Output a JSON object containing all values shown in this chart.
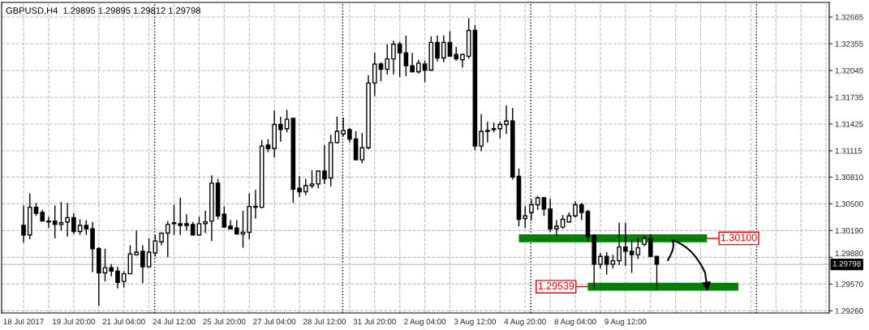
{
  "chart_data": {
    "type": "candlestick",
    "title": "GBPUSD,H4  1.29895 1.29895 1.29812 1.29798",
    "color": "#000000",
    "categories": [
      "18 Jul 2017",
      null,
      null,
      null,
      null,
      null,
      null,
      null,
      "19 Jul 20:00",
      null,
      null,
      null,
      null,
      null,
      null,
      null,
      "21 Jul 04:00",
      null,
      null,
      null,
      null,
      null,
      null,
      null,
      "24 Jul 12:00",
      null,
      null,
      null,
      null,
      null,
      null,
      null,
      "25 Jul 20:00",
      null,
      null,
      null,
      null,
      null,
      null,
      null,
      "27 Jul 04:00",
      null,
      null,
      null,
      null,
      null,
      null,
      null,
      "28 Jul 12:00",
      null,
      null,
      null,
      null,
      null,
      null,
      null,
      "31 Jul 20:00",
      null,
      null,
      null,
      null,
      null,
      null,
      null,
      "2 Aug 04:00",
      null,
      null,
      null,
      null,
      null,
      null,
      null,
      "3 Aug 12:00",
      null,
      null,
      null,
      null,
      null,
      null,
      null,
      "4 Aug 20:00",
      null,
      null,
      null,
      null,
      null,
      null,
      null,
      "8 Aug 04:00",
      null,
      null,
      null,
      null,
      null,
      null,
      null,
      "9 Aug 12:00",
      null,
      null,
      null,
      null,
      null,
      null,
      null,
      null,
      null,
      null,
      null,
      null,
      null,
      null,
      null,
      null,
      null,
      null,
      null,
      null,
      null,
      null,
      null,
      null,
      null,
      null,
      null,
      null,
      null,
      null,
      null,
      null
    ],
    "ohlc": [
      [
        1.3025,
        1.3048,
        1.3005,
        1.3014
      ],
      [
        1.3014,
        1.3062,
        1.3009,
        1.3046
      ],
      [
        1.3046,
        1.3051,
        1.3036,
        1.3039
      ],
      [
        1.304,
        1.3043,
        1.303,
        1.303
      ],
      [
        1.303,
        1.3035,
        1.3022,
        1.3029
      ],
      [
        1.303,
        1.3048,
        1.301,
        1.3026
      ],
      [
        1.3026,
        1.3052,
        1.3019,
        1.3028
      ],
      [
        1.3029,
        1.3051,
        1.3012,
        1.3034
      ],
      [
        1.3034,
        1.3039,
        1.3015,
        1.3018
      ],
      [
        1.3018,
        1.3032,
        1.3014,
        1.3025
      ],
      [
        1.3025,
        1.3031,
        1.3014,
        1.3021
      ],
      [
        1.3021,
        1.3029,
        1.2971,
        1.2998
      ],
      [
        1.2998,
        1.3,
        1.2932,
        1.297
      ],
      [
        1.297,
        1.2998,
        1.296,
        1.2976
      ],
      [
        1.2976,
        1.298,
        1.2966,
        1.2972
      ],
      [
        1.2972,
        1.2977,
        1.2952,
        1.2959
      ],
      [
        1.296,
        1.2972,
        1.2953,
        1.2969
      ],
      [
        1.2969,
        1.3002,
        1.2969,
        1.2992
      ],
      [
        1.2991,
        1.3019,
        1.299,
        1.2994
      ],
      [
        1.2995,
        1.3002,
        1.2958,
        1.2977
      ],
      [
        1.2977,
        1.301,
        1.2977,
        1.2994
      ],
      [
        1.2993,
        1.3014,
        1.2989,
        1.3007
      ],
      [
        1.3006,
        1.3016,
        1.3002,
        1.3016
      ],
      [
        1.3016,
        1.303,
        1.2988,
        1.3026
      ],
      [
        1.3027,
        1.3049,
        1.3014,
        1.3028
      ],
      [
        1.3027,
        1.3057,
        1.3014,
        1.3025
      ],
      [
        1.3027,
        1.3038,
        1.3019,
        1.3025
      ],
      [
        1.3026,
        1.3029,
        1.3014,
        1.3014
      ],
      [
        1.3014,
        1.3035,
        1.3014,
        1.3027
      ],
      [
        1.3027,
        1.3042,
        1.3016,
        1.3029
      ],
      [
        1.303,
        1.3083,
        1.3007,
        1.3074
      ],
      [
        1.3074,
        1.3079,
        1.3032,
        1.3036
      ],
      [
        1.3038,
        1.3047,
        1.3023,
        1.3023
      ],
      [
        1.3024,
        1.3031,
        1.3021,
        1.3021
      ],
      [
        1.3022,
        1.3031,
        1.3015,
        1.3015
      ],
      [
        1.3015,
        1.3042,
        1.2999,
        1.3017
      ],
      [
        1.3017,
        1.3062,
        1.3009,
        1.3047
      ],
      [
        1.3046,
        1.3066,
        1.3033,
        1.3047
      ],
      [
        1.3046,
        1.3124,
        1.3045,
        1.3117
      ],
      [
        1.3118,
        1.3125,
        1.311,
        1.3114
      ],
      [
        1.3114,
        1.3158,
        1.3104,
        1.3142
      ],
      [
        1.3142,
        1.3151,
        1.3122,
        1.3136
      ],
      [
        1.3137,
        1.3159,
        1.3133,
        1.3148
      ],
      [
        1.3149,
        1.3149,
        1.3051,
        1.3067
      ],
      [
        1.3068,
        1.3082,
        1.3058,
        1.3064
      ],
      [
        1.3064,
        1.3079,
        1.306,
        1.3071
      ],
      [
        1.3071,
        1.3089,
        1.3068,
        1.3073
      ],
      [
        1.3073,
        1.3088,
        1.3068,
        1.3088
      ],
      [
        1.3088,
        1.3118,
        1.3073,
        1.3079
      ],
      [
        1.308,
        1.313,
        1.307,
        1.3121
      ],
      [
        1.3121,
        1.3151,
        1.312,
        1.3134
      ],
      [
        1.3131,
        1.315,
        1.3128,
        1.3135
      ],
      [
        1.3136,
        1.3138,
        1.3121,
        1.3125
      ],
      [
        1.3125,
        1.3134,
        1.3101,
        1.3101
      ],
      [
        1.3101,
        1.3132,
        1.3097,
        1.3115
      ],
      [
        1.3115,
        1.3199,
        1.3113,
        1.319
      ],
      [
        1.319,
        1.3225,
        1.3175,
        1.3212
      ],
      [
        1.3212,
        1.3214,
        1.3192,
        1.3206
      ],
      [
        1.3206,
        1.3235,
        1.32,
        1.3218
      ],
      [
        1.3218,
        1.3239,
        1.32,
        1.3235
      ],
      [
        1.3235,
        1.3238,
        1.3197,
        1.3225
      ],
      [
        1.3225,
        1.3245,
        1.3198,
        1.321
      ],
      [
        1.321,
        1.3225,
        1.3203,
        1.3203
      ],
      [
        1.3203,
        1.3217,
        1.3201,
        1.3213
      ],
      [
        1.3212,
        1.3216,
        1.3191,
        1.3205
      ],
      [
        1.3205,
        1.3244,
        1.3204,
        1.3237
      ],
      [
        1.3237,
        1.3245,
        1.3215,
        1.3219
      ],
      [
        1.3219,
        1.3245,
        1.3214,
        1.3237
      ],
      [
        1.3237,
        1.325,
        1.3221,
        1.3221
      ],
      [
        1.3223,
        1.3232,
        1.3216,
        1.3218
      ],
      [
        1.3217,
        1.3223,
        1.3208,
        1.3223
      ],
      [
        1.3221,
        1.3265,
        1.3218,
        1.3251
      ],
      [
        1.3251,
        1.3257,
        1.3112,
        1.3117
      ],
      [
        1.3117,
        1.3154,
        1.3111,
        1.3134
      ],
      [
        1.3135,
        1.3145,
        1.3121,
        1.3134
      ],
      [
        1.3137,
        1.3144,
        1.3133,
        1.3136
      ],
      [
        1.3137,
        1.3145,
        1.3126,
        1.3142
      ],
      [
        1.3142,
        1.3164,
        1.3131,
        1.3146
      ],
      [
        1.3146,
        1.3161,
        1.3078,
        1.3081
      ],
      [
        1.3082,
        1.3091,
        1.3024,
        1.3032
      ],
      [
        1.3033,
        1.3047,
        1.3022,
        1.3036
      ],
      [
        1.304,
        1.3055,
        1.3031,
        1.3049
      ],
      [
        1.3049,
        1.3059,
        1.3043,
        1.3057
      ],
      [
        1.3057,
        1.3058,
        1.3036,
        1.3044
      ],
      [
        1.3044,
        1.3056,
        1.3017,
        1.3021
      ],
      [
        1.3021,
        1.3031,
        1.3013,
        1.3024
      ],
      [
        1.3023,
        1.3037,
        1.3021,
        1.3032
      ],
      [
        1.3029,
        1.304,
        1.3029,
        1.3036
      ],
      [
        1.3036,
        1.3053,
        1.3034,
        1.3049
      ],
      [
        1.3049,
        1.3051,
        1.3031,
        1.304
      ],
      [
        1.3041,
        1.3043,
        1.3006,
        1.3012
      ],
      [
        1.3013,
        1.3015,
        1.2952,
        1.298
      ],
      [
        1.298,
        1.2993,
        1.2975,
        1.2989
      ],
      [
        1.2989,
        1.2994,
        1.2968,
        1.298
      ],
      [
        1.298,
        1.2991,
        1.2975,
        1.2984
      ],
      [
        1.2984,
        1.3028,
        1.2979,
        1.3
      ],
      [
        1.3,
        1.3028,
        1.2978,
        1.2995
      ],
      [
        1.2995,
        1.3008,
        1.297,
        1.2991
      ],
      [
        1.2991,
        1.301,
        1.2986,
        1.2999
      ],
      [
        1.3003,
        1.3013,
        1.3001,
        1.301
      ],
      [
        1.301,
        1.3015,
        1.2989,
        1.2989
      ],
      [
        1.2989,
        1.2989,
        1.2951,
        1.298
      ],
      null,
      null,
      null,
      null,
      null,
      null,
      null,
      null,
      null,
      null,
      null,
      null,
      null,
      null,
      null,
      null,
      null,
      null,
      null,
      null,
      null,
      null,
      null,
      null,
      null,
      null,
      null
    ],
    "series": [
      {
        "type": "line",
        "color": "#008000",
        "values": [
          null,
          null,
          null,
          null,
          null,
          null,
          null,
          null,
          null,
          null,
          null,
          null,
          null,
          null,
          null,
          null,
          null,
          null,
          null,
          null,
          null,
          null,
          null,
          null,
          null,
          null,
          null,
          null,
          null,
          null,
          null,
          null,
          null,
          null,
          null,
          null,
          null,
          null,
          null,
          null,
          null,
          null,
          null,
          null,
          null,
          null,
          null,
          null,
          null,
          null,
          null,
          null,
          null,
          null,
          null,
          null,
          null,
          null,
          null,
          null,
          null,
          null,
          null,
          null,
          null,
          null,
          null,
          null,
          null,
          null,
          null,
          null,
          null,
          null,
          null,
          null,
          null,
          null,
          null,
          1.301,
          1.301,
          1.301,
          1.301,
          1.301,
          1.301,
          1.301,
          1.301,
          1.301,
          1.301,
          1.301,
          1.301,
          1.301,
          1.301,
          1.301,
          1.301,
          1.301,
          1.301,
          1.301,
          1.301,
          1.301,
          1.301,
          1.301,
          1.301,
          1.301,
          1.301,
          1.301,
          1.301,
          1.301,
          1.301,
          1.301,
          null,
          null,
          null,
          null,
          null,
          null,
          null,
          null,
          null,
          null,
          null,
          null,
          null,
          null,
          null,
          null,
          null,
          null,
          null
        ]
      },
      {
        "type": "line",
        "color": "#008000",
        "values": [
          null,
          null,
          null,
          null,
          null,
          null,
          null,
          null,
          null,
          null,
          null,
          null,
          null,
          null,
          null,
          null,
          null,
          null,
          null,
          null,
          null,
          null,
          null,
          null,
          null,
          null,
          null,
          null,
          null,
          null,
          null,
          null,
          null,
          null,
          null,
          null,
          null,
          null,
          null,
          null,
          null,
          null,
          null,
          null,
          null,
          null,
          null,
          null,
          null,
          null,
          null,
          null,
          null,
          null,
          null,
          null,
          null,
          null,
          null,
          null,
          null,
          null,
          null,
          null,
          null,
          null,
          null,
          null,
          null,
          null,
          null,
          null,
          null,
          null,
          null,
          null,
          null,
          null,
          null,
          null,
          null,
          null,
          null,
          null,
          null,
          null,
          null,
          null,
          null,
          null,
          1.2954,
          1.2954,
          1.2954,
          1.2954,
          1.2954,
          1.2954,
          1.2954,
          1.2954,
          1.2954,
          1.2954,
          1.2954,
          1.2954,
          1.2954,
          1.2954,
          1.2954,
          1.2954,
          1.2954,
          1.2954,
          1.2954,
          1.2954,
          1.2954,
          1.2954,
          1.2954,
          1.2954,
          1.2954,
          null,
          null,
          null,
          null,
          null,
          null,
          null,
          null,
          null,
          null,
          null,
          null,
          null,
          null
        ]
      }
    ],
    "annotations": [
      "1.30100",
      "1.29539"
    ],
    "ref_lines": [
      {
        "axis": "y",
        "value": 1.29798,
        "label": "1.29798",
        "color": "#c0c0c0",
        "line_style": "solid"
      }
    ],
    "ylim": [
      1.29235,
      1.32834
    ],
    "yticks": [
      {
        "value": 1.32665,
        "label": "1.32665"
      },
      {
        "value": 1.32355,
        "label": "1.32355"
      },
      {
        "value": 1.32045,
        "label": "1.32045"
      },
      {
        "value": 1.31735,
        "label": "1.31735"
      },
      {
        "value": 1.31425,
        "label": "1.31425"
      },
      {
        "value": 1.31115,
        "label": "1.31115"
      },
      {
        "value": 1.3081,
        "label": "1.30810"
      },
      {
        "value": 1.305,
        "label": "1.30500"
      },
      {
        "value": 1.3019,
        "label": "1.30190"
      },
      {
        "value": 1.2988,
        "label": "1.29880"
      },
      {
        "value": 1.2957,
        "label": "1.29570"
      },
      {
        "value": 1.2926,
        "label": "1.29260"
      }
    ],
    "grid": true,
    "legend": false
  }
}
